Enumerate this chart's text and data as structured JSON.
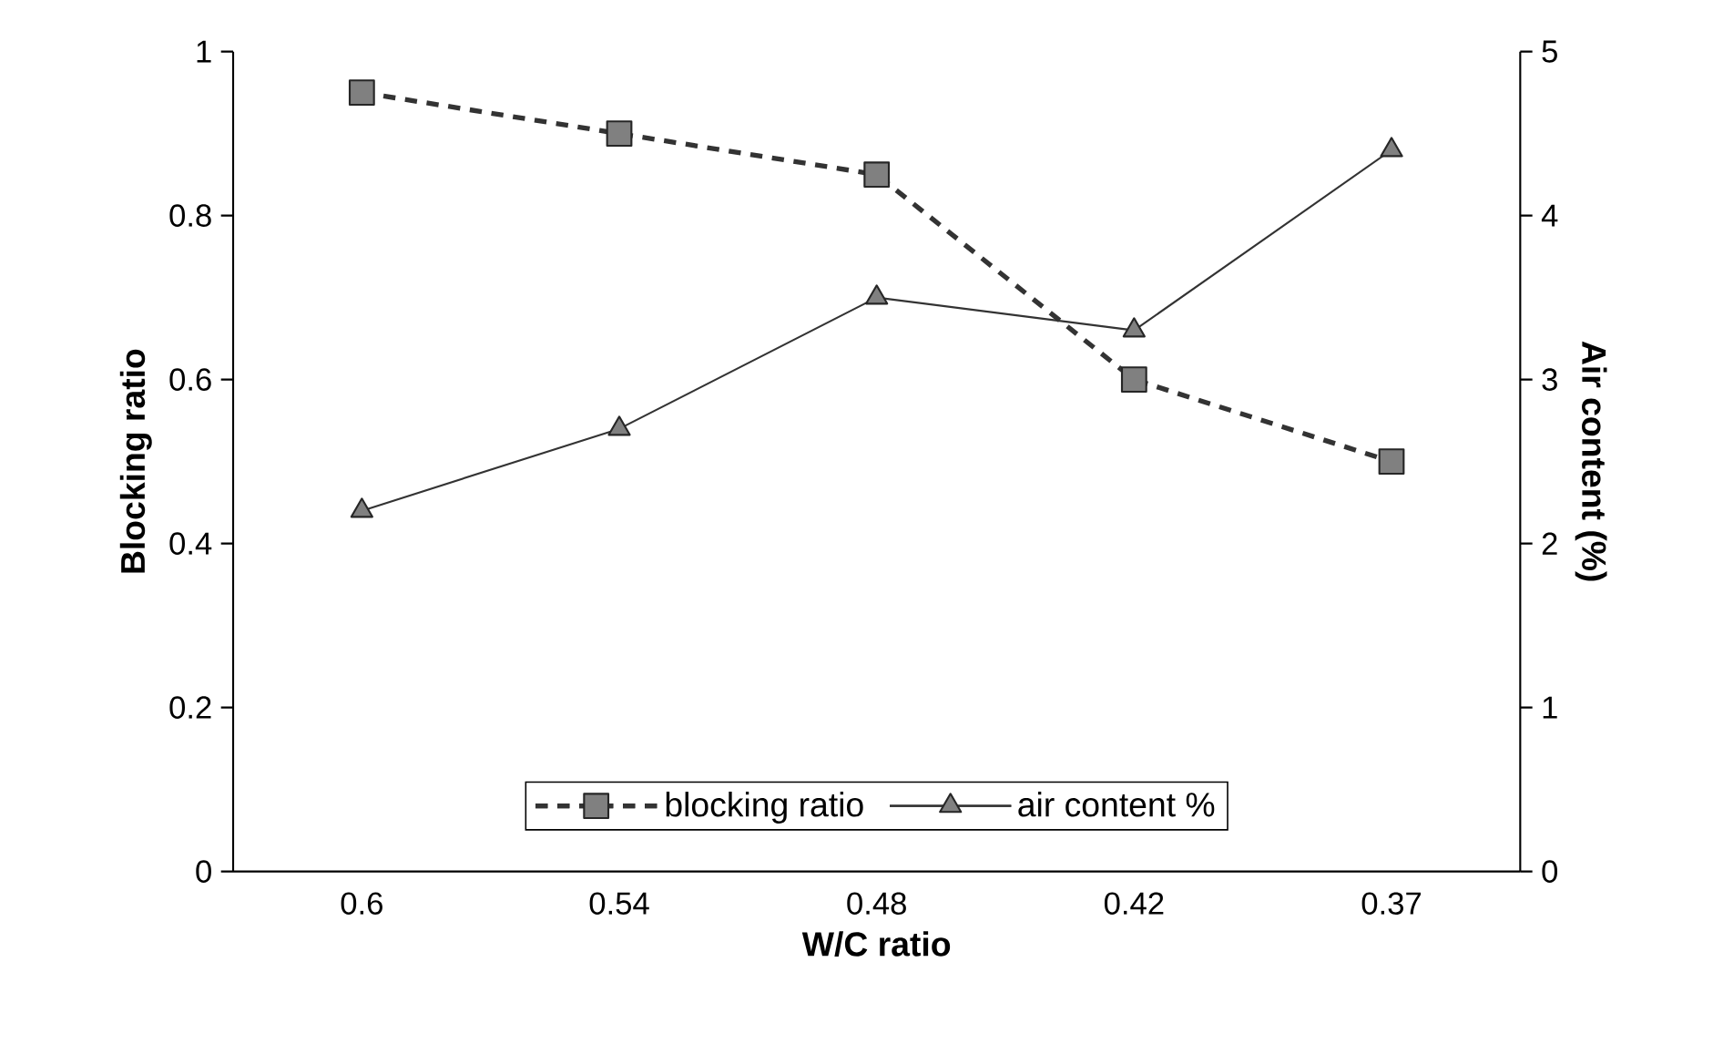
{
  "chart_data": {
    "type": "line",
    "xlabel": "W/C ratio",
    "ylabel": "Blocking ratio",
    "y2label": "Air content (%)",
    "categories": [
      "0.6",
      "0.54",
      "0.48",
      "0.42",
      "0.37"
    ],
    "series": [
      {
        "name": "blocking ratio",
        "color": "#808080",
        "values": [
          0.95,
          0.9,
          0.85,
          0.6,
          0.5
        ],
        "marker": "square",
        "line_style": "dashed"
      },
      {
        "name": "air content %",
        "color": "#808080",
        "values": [
          2.2,
          2.7,
          3.5,
          3.3,
          4.4
        ],
        "marker": "triangle",
        "line_style": "solid",
        "axis": "y2"
      }
    ],
    "ylim": [
      0,
      1
    ],
    "yticks": [
      0,
      0.2,
      0.4,
      0.6,
      0.8,
      1
    ],
    "y2lim": [
      0,
      5
    ],
    "y2ticks": [
      0,
      1,
      2,
      3,
      4,
      5
    ],
    "legend": "bottom",
    "grid": false
  }
}
